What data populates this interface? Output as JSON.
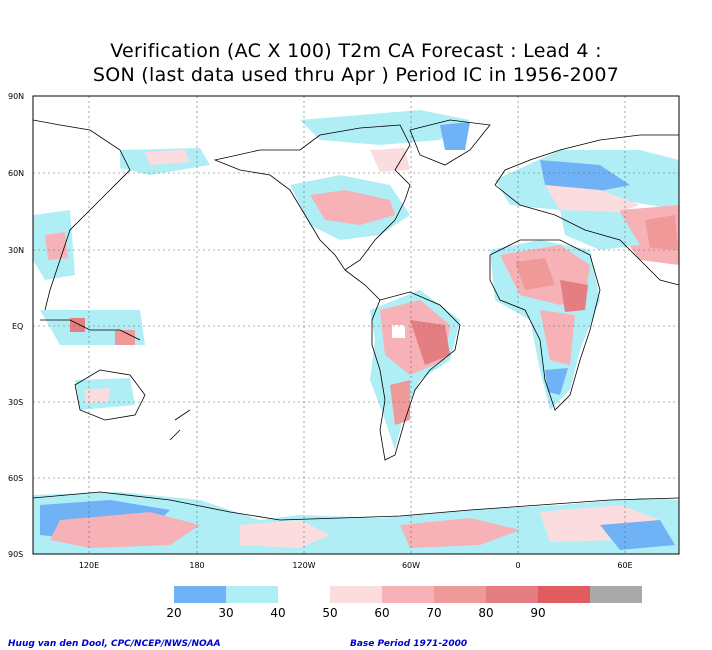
{
  "title_line1": "Verification (AC X 100) T2m CA Forecast : Lead 4 :",
  "title_line2": "SON (last data used thru Apr ) Period IC in 1956-2007",
  "lat_labels": [
    "90N",
    "60N",
    "30N",
    "EQ",
    "30S",
    "60S",
    "90S"
  ],
  "lon_labels": [
    "120E",
    "180",
    "120W",
    "60W",
    "0",
    "60E"
  ],
  "colorbar": {
    "ticks": [
      "20",
      "30",
      "40",
      "50",
      "60",
      "70",
      "80",
      "90"
    ],
    "colors": [
      "#6fb2f5",
      "#b0eef6",
      "#ffffff",
      "#fcdddf",
      "#f6b2b6",
      "#ef9999",
      "#e57e82",
      "#e05c5e",
      "#a9a9a9"
    ]
  },
  "footer_left": "Huug van den Dool, CPC/NCEP/NWS/NOAA",
  "footer_right": "Base Period 1971-2000"
}
